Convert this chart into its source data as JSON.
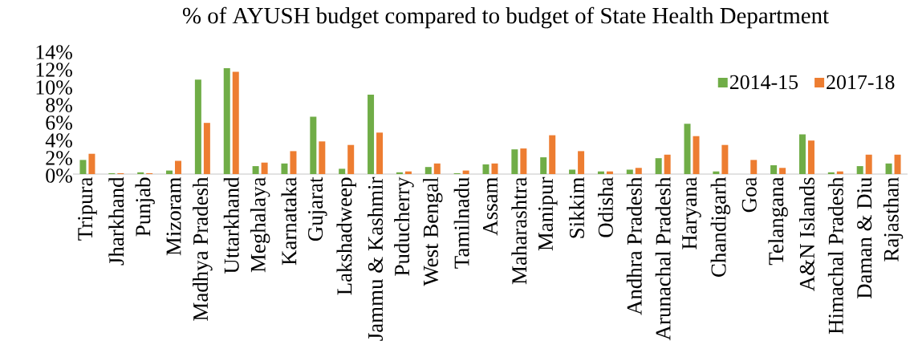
{
  "chart_data": {
    "type": "bar",
    "title": "% of AYUSH budget compared to budget of State Health Department",
    "categories": [
      "Tripura",
      "Jharkhand",
      "Punjab",
      "Mizoram",
      "Madhya Pradesh",
      "Uttarkhand",
      "Meghalaya",
      "Karnataka",
      "Gujarat",
      "Lakshadweep",
      "Jammu & Kashmir",
      "Puducherry",
      "West Bengal",
      "Tamilnadu",
      "Assam",
      "Maharashtra",
      "Manipur",
      "Sikkim",
      "Odisha",
      "Andhra Pradesh",
      "Arunachal Pradesh",
      "Haryana",
      "Chandigarh",
      "Goa",
      "Telangana",
      "A&N Islands",
      "Himachal Pradesh",
      "Daman & Diu",
      "Rajasthan"
    ],
    "series": [
      {
        "name": "2014-15",
        "color": "#70ad47",
        "values": [
          1.6,
          0.1,
          0.2,
          0.4,
          10.7,
          12.0,
          0.9,
          1.2,
          6.5,
          0.6,
          9.0,
          0.2,
          0.8,
          0.1,
          1.1,
          2.8,
          1.9,
          0.5,
          0.3,
          0.5,
          1.8,
          5.7,
          0.3,
          0.0,
          1.0,
          4.5,
          0.2,
          0.9,
          1.2
        ]
      },
      {
        "name": "2017-18",
        "color": "#ed7d31",
        "values": [
          2.3,
          0.1,
          0.1,
          1.5,
          5.8,
          11.6,
          1.3,
          2.6,
          3.7,
          3.3,
          4.7,
          0.3,
          1.2,
          0.4,
          1.2,
          2.9,
          4.4,
          2.6,
          0.3,
          0.7,
          2.2,
          4.3,
          3.3,
          1.6,
          0.7,
          3.8,
          0.3,
          2.2,
          2.2
        ]
      }
    ],
    "ylim": [
      0,
      14
    ],
    "yticks": [
      {
        "value": 0,
        "label": "0%"
      },
      {
        "value": 2,
        "label": "2%"
      },
      {
        "value": 4,
        "label": "4%"
      },
      {
        "value": 6,
        "label": "6%"
      },
      {
        "value": 8,
        "label": "8%"
      },
      {
        "value": 10,
        "label": "10%"
      },
      {
        "value": 12,
        "label": "12%"
      },
      {
        "value": 14,
        "label": "14%"
      }
    ],
    "legend": "top right"
  }
}
